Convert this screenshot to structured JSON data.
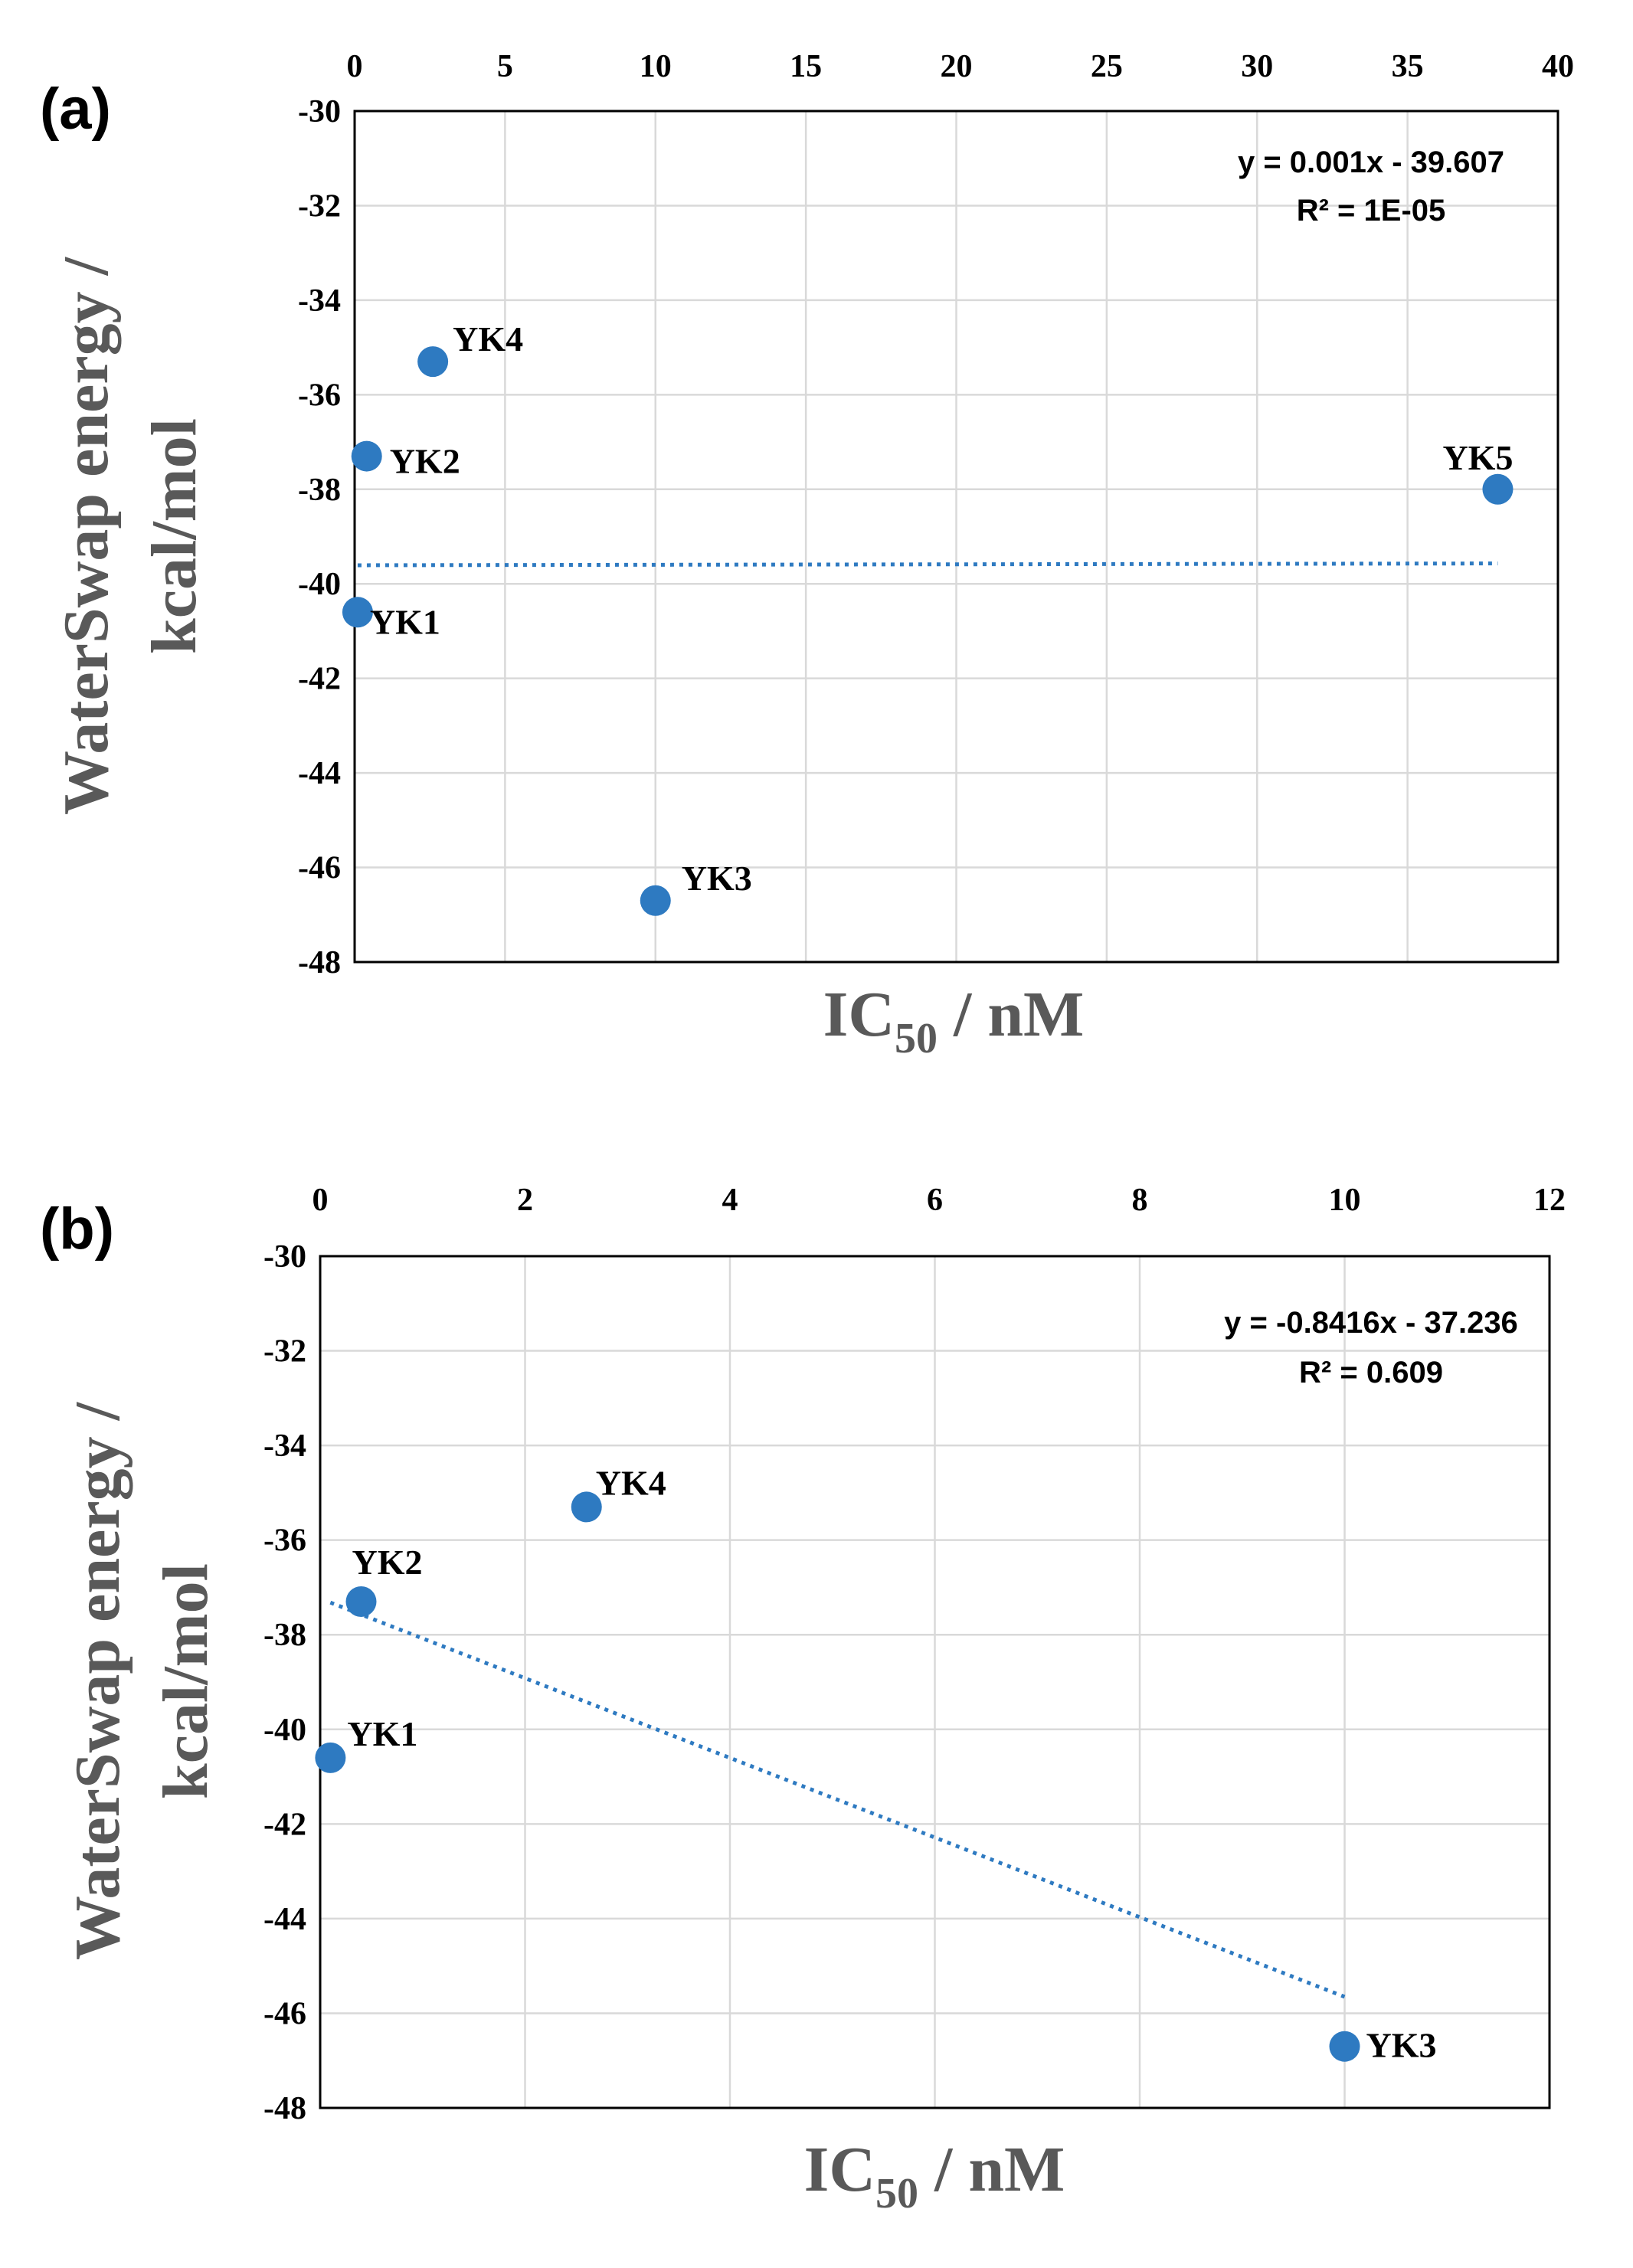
{
  "colors": {
    "point": "#2e7ac1",
    "trend": "#2e7ac1",
    "grid": "#d9d9d9",
    "axis_title": "#595959"
  },
  "chart_data": [
    {
      "type": "scatter",
      "panel_label": "(a)",
      "xlabel": {
        "main": "IC",
        "sub": "50",
        "rest": " / nM"
      },
      "ylabel": [
        "WaterSwap energy /",
        "kcal/mol"
      ],
      "x_axis_position": "top",
      "xlim": [
        0,
        40
      ],
      "x_ticks": [
        0,
        5,
        10,
        15,
        20,
        25,
        30,
        35,
        40
      ],
      "ylim": [
        -48,
        -30
      ],
      "y_ticks": [
        -30,
        -32,
        -34,
        -36,
        -38,
        -40,
        -42,
        -44,
        -46,
        -48
      ],
      "grid": true,
      "points": [
        {
          "label": "YK1",
          "x": 0.1,
          "y": -40.6
        },
        {
          "label": "YK2",
          "x": 0.4,
          "y": -37.3
        },
        {
          "label": "YK3",
          "x": 10.0,
          "y": -46.7
        },
        {
          "label": "YK4",
          "x": 2.6,
          "y": -35.3
        },
        {
          "label": "YK5",
          "x": 38.0,
          "y": -38.0
        }
      ],
      "trendline": {
        "type": "linear",
        "x_range": [
          0.1,
          38.0
        ],
        "slope": 0.001,
        "intercept": -39.607
      },
      "equation": "y = 0.001x - 39.607",
      "r_squared": "R² = 1E-05",
      "equation_position": "top-right"
    },
    {
      "type": "scatter",
      "panel_label": "(b)",
      "xlabel": {
        "main": "IC",
        "sub": "50",
        "rest": " / nM"
      },
      "ylabel": [
        "WaterSwap energy /",
        "kcal/mol"
      ],
      "x_axis_position": "top",
      "xlim": [
        0,
        12
      ],
      "x_ticks": [
        0,
        2,
        4,
        6,
        8,
        10,
        12
      ],
      "ylim": [
        -48,
        -30
      ],
      "y_ticks": [
        -30,
        -32,
        -34,
        -36,
        -38,
        -40,
        -42,
        -44,
        -46,
        -48
      ],
      "grid": true,
      "points": [
        {
          "label": "YK1",
          "x": 0.1,
          "y": -40.6
        },
        {
          "label": "YK2",
          "x": 0.4,
          "y": -37.3
        },
        {
          "label": "YK3",
          "x": 10.0,
          "y": -46.7
        },
        {
          "label": "YK4",
          "x": 2.6,
          "y": -35.3
        }
      ],
      "trendline": {
        "type": "linear",
        "x_range": [
          0.1,
          10.0
        ],
        "slope": -0.8416,
        "intercept": -37.236
      },
      "equation": "y = -0.8416x - 37.236",
      "r_squared": "R² = 0.609",
      "equation_position": "top-right"
    }
  ]
}
